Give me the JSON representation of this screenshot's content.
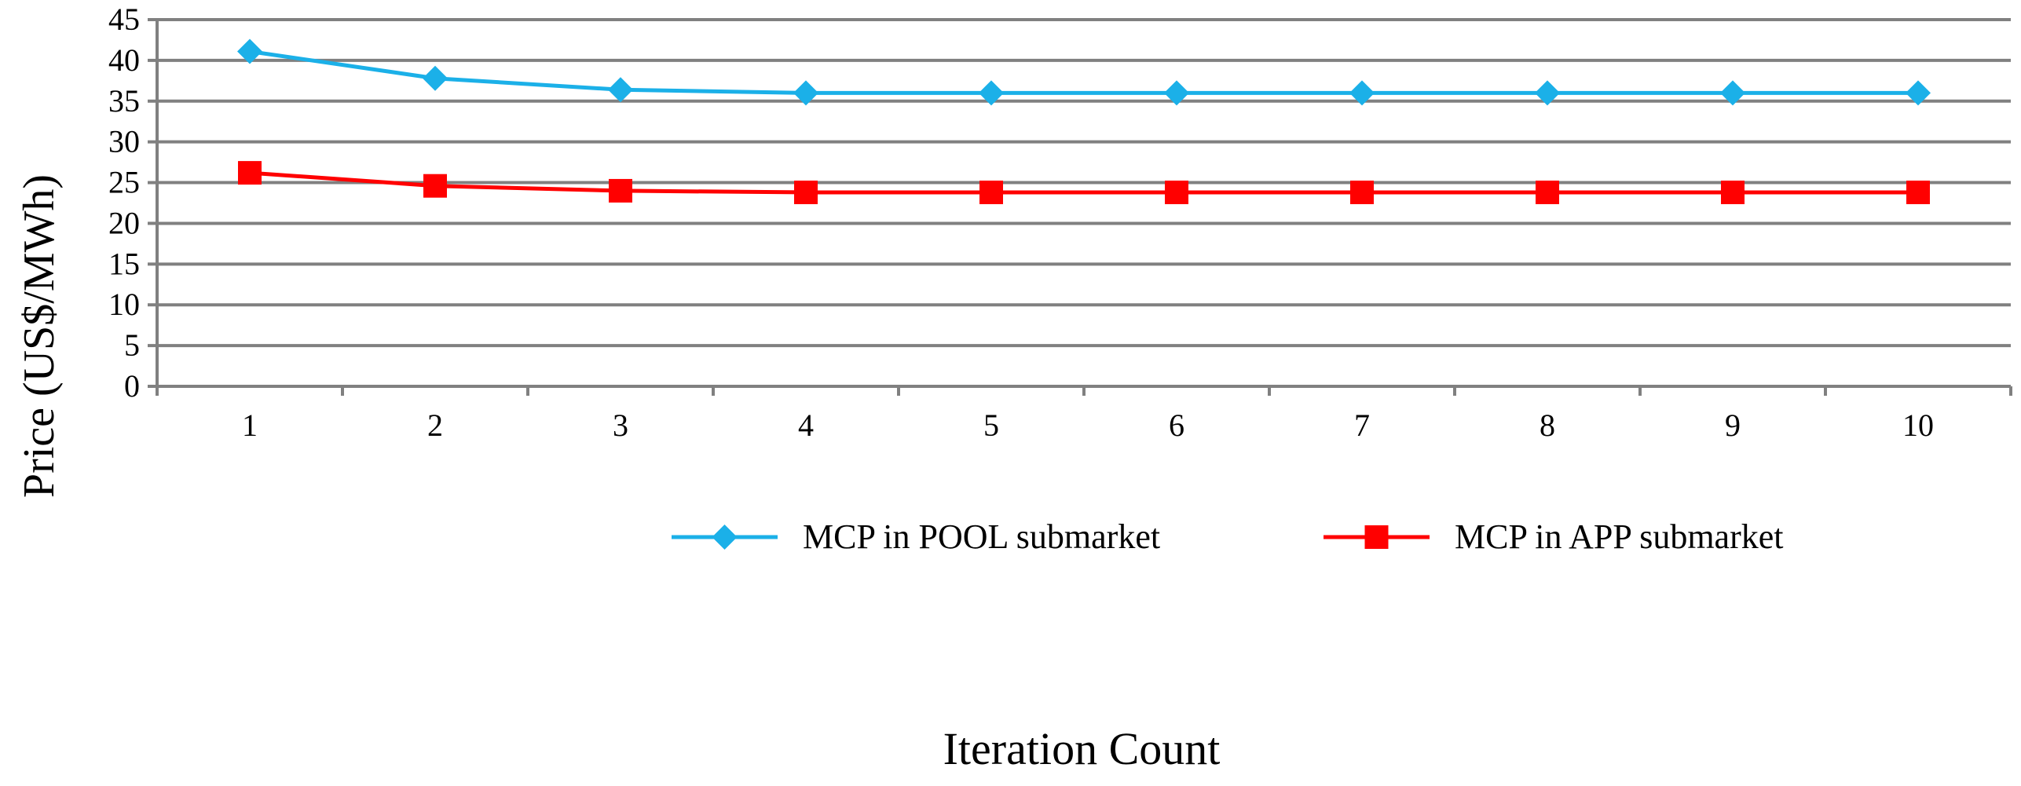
{
  "chart_data": {
    "type": "line",
    "title": "",
    "xlabel": "Iteration Count",
    "ylabel": "Price (US$/MWh)",
    "categories": [
      "1",
      "2",
      "3",
      "4",
      "5",
      "6",
      "7",
      "8",
      "9",
      "10"
    ],
    "x": [
      1,
      2,
      3,
      4,
      5,
      6,
      7,
      8,
      9,
      10
    ],
    "ylim": [
      0,
      45
    ],
    "yticks": [
      0,
      5,
      10,
      15,
      20,
      25,
      30,
      35,
      40,
      45
    ],
    "grid": "horizontal",
    "legend_position": "bottom-right",
    "series": [
      {
        "name": "MCP in POOL submarket",
        "color": "#1BB0E8",
        "marker": "diamond",
        "values": [
          41.1,
          37.8,
          36.4,
          36.0,
          36.0,
          36.0,
          36.0,
          36.0,
          36.0,
          36.0
        ]
      },
      {
        "name": "MCP in APP submarket",
        "color": "#FF0000",
        "marker": "square",
        "values": [
          26.2,
          24.6,
          24.0,
          23.8,
          23.8,
          23.8,
          23.8,
          23.8,
          23.8,
          23.8
        ]
      }
    ]
  },
  "colors": {
    "grid": "#808080",
    "axis": "#808080"
  }
}
